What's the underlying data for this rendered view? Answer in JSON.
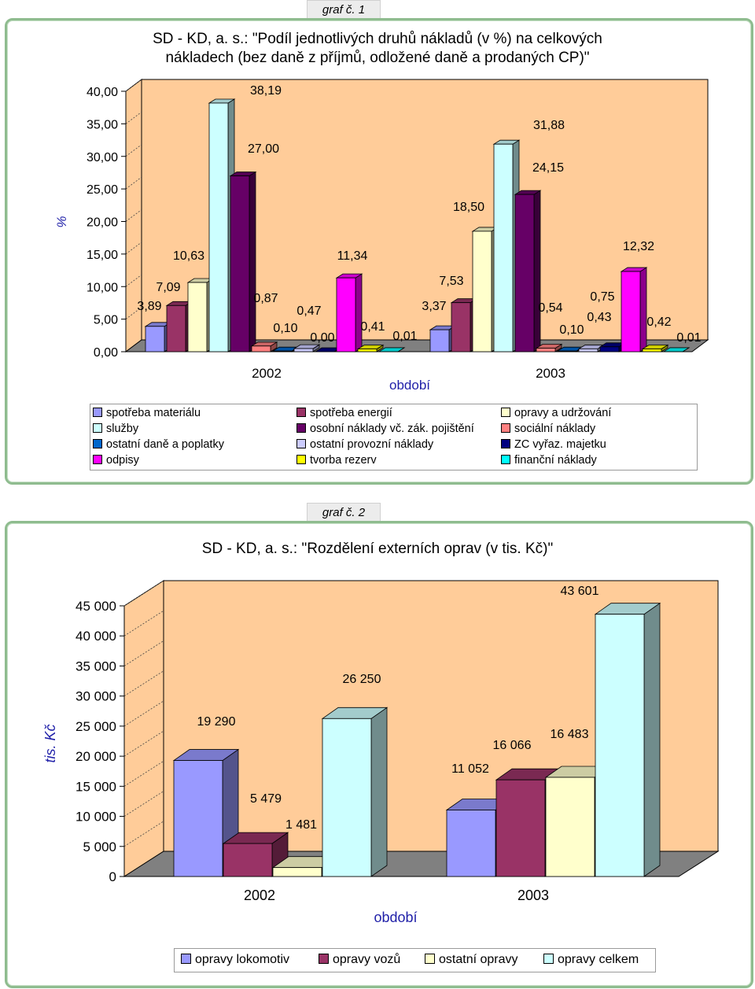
{
  "graph1": {
    "tab_label": "graf č. 1",
    "title_line1": "SD - KD, a. s.: \"Podíl jednotlivých druhů nákladů (v %) na celkových",
    "title_line2": "nákladech (bez daně z příjmů, odložené daně a prodaných CP)\"",
    "chart_data": {
      "type": "bar",
      "categories": [
        "2002",
        "2003"
      ],
      "xlabel": "období",
      "ylabel": "%",
      "ylim": [
        0,
        40
      ],
      "yticks": [
        "0,00",
        "5,00",
        "10,00",
        "15,00",
        "20,00",
        "25,00",
        "30,00",
        "35,00",
        "40,00"
      ],
      "grid": false,
      "legend_position": "bottom",
      "series": [
        {
          "name": "spotřeba materiálu",
          "values": [
            3.89,
            3.37
          ],
          "labels": [
            "3,89",
            "3,37"
          ],
          "color": "#9999ff"
        },
        {
          "name": "spotřeba energií",
          "values": [
            7.09,
            7.53
          ],
          "labels": [
            "7,09",
            "7,53"
          ],
          "color": "#993366"
        },
        {
          "name": "opravy a udržování",
          "values": [
            10.63,
            18.5
          ],
          "labels": [
            "10,63",
            "18,50"
          ],
          "color": "#ffffcc"
        },
        {
          "name": "služby",
          "values": [
            38.19,
            31.88
          ],
          "labels": [
            "38,19",
            "31,88"
          ],
          "color": "#ccffff"
        },
        {
          "name": "osobní náklady vč. zák. pojištění",
          "values": [
            27.0,
            24.15
          ],
          "labels": [
            "27,00",
            "24,15"
          ],
          "color": "#660066"
        },
        {
          "name": "sociální náklady",
          "values": [
            0.87,
            0.54
          ],
          "labels": [
            "0,87",
            "0,54"
          ],
          "color": "#ff8080"
        },
        {
          "name": "ostatní daně a poplatky",
          "values": [
            0.1,
            0.1
          ],
          "labels": [
            "0,10",
            "0,10"
          ],
          "color": "#0066cc"
        },
        {
          "name": "ostatní provozní náklady",
          "values": [
            0.47,
            0.43
          ],
          "labels": [
            "0,47",
            "0,43"
          ],
          "color": "#ccccff"
        },
        {
          "name": "ZC vyřaz. majetku",
          "values": [
            0.0,
            0.75
          ],
          "labels": [
            "0,00",
            "0,75"
          ],
          "color": "#000080"
        },
        {
          "name": "odpisy",
          "values": [
            11.34,
            12.32
          ],
          "labels": [
            "11,34",
            "12,32"
          ],
          "color": "#ff00ff"
        },
        {
          "name": "tvorba rezerv",
          "values": [
            0.41,
            0.42
          ],
          "labels": [
            "0,41",
            "0,42"
          ],
          "color": "#ffff00"
        },
        {
          "name": "finanční náklady",
          "values": [
            0.01,
            0.01
          ],
          "labels": [
            "0,01",
            "0,01"
          ],
          "color": "#00ffff"
        }
      ]
    }
  },
  "graph2": {
    "tab_label": "graf č. 2",
    "title": "SD - KD, a. s.: \"Rozdělení externích oprav (v tis. Kč)\"",
    "chart_data": {
      "type": "bar",
      "categories": [
        "2002",
        "2003"
      ],
      "xlabel": "období",
      "ylabel": "tis. Kč",
      "ylim": [
        0,
        45000
      ],
      "yticks": [
        "0",
        "5 000",
        "10 000",
        "15 000",
        "20 000",
        "25 000",
        "30 000",
        "35 000",
        "40 000",
        "45 000"
      ],
      "grid": false,
      "legend_position": "bottom",
      "series": [
        {
          "name": "opravy lokomotiv",
          "values": [
            19290,
            11052
          ],
          "labels": [
            "19 290",
            "11 052"
          ],
          "color": "#9999ff"
        },
        {
          "name": "opravy vozů",
          "values": [
            5479,
            16066
          ],
          "labels": [
            "5 479",
            "16 066"
          ],
          "color": "#993366"
        },
        {
          "name": "ostatní opravy",
          "values": [
            1481,
            16483
          ],
          "labels": [
            "1 481",
            "16 483"
          ],
          "color": "#ffffcc"
        },
        {
          "name": "opravy celkem",
          "values": [
            26250,
            43601
          ],
          "labels": [
            "26 250",
            "43 601"
          ],
          "color": "#ccffff"
        }
      ]
    }
  },
  "colors": {
    "plot_back": "#ffcc99",
    "floor": "#808080",
    "frame_border": "#8fbc8f",
    "axis_label": "#1f1fa8"
  }
}
